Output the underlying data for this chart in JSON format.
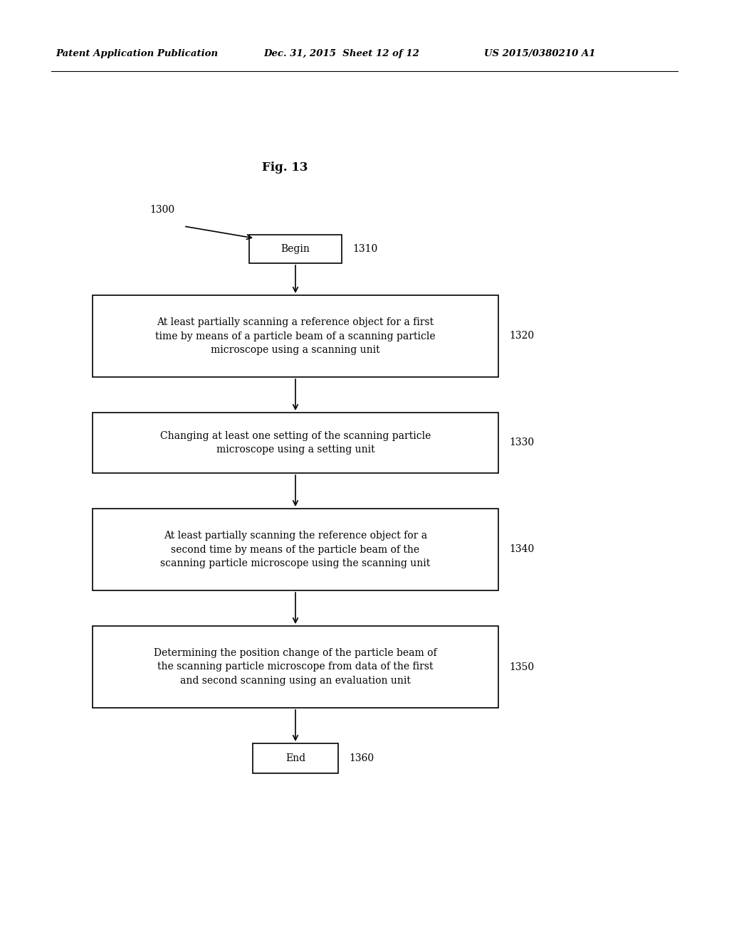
{
  "background_color": "#ffffff",
  "fig_title": "Fig. 13",
  "header_left": "Patent Application Publication",
  "header_mid": "Dec. 31, 2015  Sheet 12 of 12",
  "header_right": "US 2015/0380210 A1",
  "label_1300": "1300",
  "label_1310": "1310",
  "begin_text": "Begin",
  "box1_text": "At least partially scanning a reference object for a first\ntime by means of a particle beam of a scanning particle\nmicroscope using a scanning unit",
  "label_1320": "1320",
  "box2_text": "Changing at least one setting of the scanning particle\nmicroscope using a setting unit",
  "label_1330": "1330",
  "box3_text": "At least partially scanning the reference object for a\nsecond time by means of the particle beam of the\nscanning particle microscope using the scanning unit",
  "label_1340": "1340",
  "box4_text": "Determining the position change of the particle beam of\nthe scanning particle microscope from data of the first\nand second scanning using an evaluation unit",
  "label_1350": "1350",
  "end_text": "End",
  "label_1360": "1360",
  "text_color": "#000000",
  "box_edge_color": "#000000",
  "box_face_color": "#ffffff",
  "arrow_color": "#000000",
  "font_size_header": 9.5,
  "font_size_fig_title": 12,
  "font_size_box": 10,
  "font_size_label": 10
}
